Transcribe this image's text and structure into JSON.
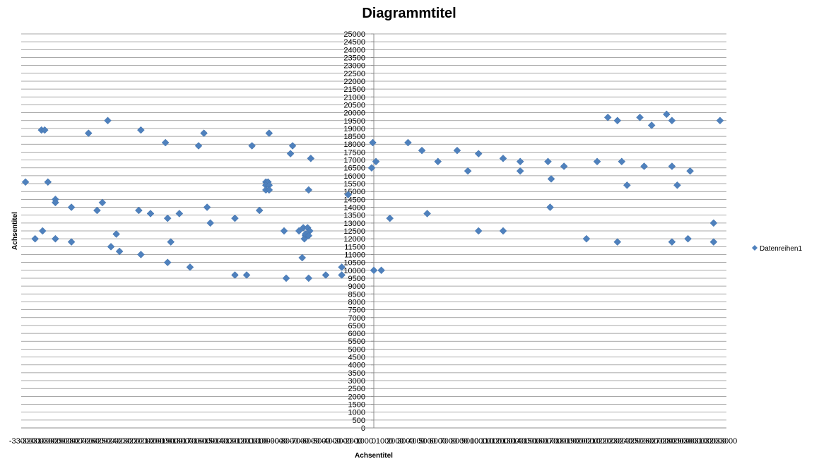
{
  "chart_data": {
    "type": "scatter",
    "title": "Diagrammtitel",
    "xlabel": "Achsentitel",
    "ylabel": "Achsentitel",
    "xlim": [
      -33000,
      33000
    ],
    "ylim": [
      0,
      25000
    ],
    "ytick_step": 500,
    "xtick_step": 1000,
    "grid": true,
    "legend_position": "right",
    "marker": "diamond",
    "color": "#4f81bd",
    "series": [
      {
        "name": "Datenreihen1",
        "points": [
          [
            -32600,
            15600
          ],
          [
            -31700,
            12000
          ],
          [
            -31000,
            12500
          ],
          [
            -31100,
            18900
          ],
          [
            -30800,
            18900
          ],
          [
            -30500,
            15600
          ],
          [
            -29800,
            14500
          ],
          [
            -29800,
            14300
          ],
          [
            -29800,
            12000
          ],
          [
            -28300,
            14000
          ],
          [
            -28300,
            11800
          ],
          [
            -26700,
            18700
          ],
          [
            -25900,
            13800
          ],
          [
            -25400,
            14300
          ],
          [
            -24900,
            19500
          ],
          [
            -24600,
            11500
          ],
          [
            -24100,
            12300
          ],
          [
            -23800,
            11200
          ],
          [
            -22000,
            13800
          ],
          [
            -21800,
            11000
          ],
          [
            -21800,
            18900
          ],
          [
            -20900,
            13600
          ],
          [
            -19500,
            18100
          ],
          [
            -19300,
            13300
          ],
          [
            -19300,
            10500
          ],
          [
            -19000,
            11800
          ],
          [
            -18200,
            13600
          ],
          [
            -17200,
            10200
          ],
          [
            -16400,
            17900
          ],
          [
            -15900,
            18700
          ],
          [
            -15600,
            14000
          ],
          [
            -15300,
            13000
          ],
          [
            -13000,
            13300
          ],
          [
            -13000,
            9700
          ],
          [
            -11900,
            9700
          ],
          [
            -11400,
            17900
          ],
          [
            -10700,
            13800
          ],
          [
            -10100,
            15600
          ],
          [
            -9900,
            15600
          ],
          [
            -10100,
            15400
          ],
          [
            -9800,
            15400
          ],
          [
            -10100,
            15100
          ],
          [
            -9800,
            15100
          ],
          [
            -9800,
            18700
          ],
          [
            -8400,
            12500
          ],
          [
            -8200,
            9500
          ],
          [
            -7800,
            17400
          ],
          [
            -7600,
            17900
          ],
          [
            -7000,
            12500
          ],
          [
            -6700,
            10800
          ],
          [
            -6600,
            12700
          ],
          [
            -6400,
            12200
          ],
          [
            -6500,
            12000
          ],
          [
            -6200,
            12700
          ],
          [
            -6000,
            12500
          ],
          [
            -6400,
            12300
          ],
          [
            -6100,
            12200
          ],
          [
            -6100,
            15100
          ],
          [
            -6100,
            9500
          ],
          [
            -5900,
            17100
          ],
          [
            -4500,
            9700
          ],
          [
            -3000,
            9700
          ],
          [
            -3000,
            10200
          ],
          [
            -2400,
            14800
          ],
          [
            -100,
            18100
          ],
          [
            -200,
            16500
          ],
          [
            0,
            10000
          ],
          [
            200,
            16900
          ],
          [
            700,
            10000
          ],
          [
            1500,
            13300
          ],
          [
            3200,
            18100
          ],
          [
            4500,
            17600
          ],
          [
            5000,
            13600
          ],
          [
            6000,
            16900
          ],
          [
            7800,
            17600
          ],
          [
            8800,
            16300
          ],
          [
            9800,
            17400
          ],
          [
            9800,
            12500
          ],
          [
            12100,
            17100
          ],
          [
            12100,
            12500
          ],
          [
            13700,
            16900
          ],
          [
            13700,
            16300
          ],
          [
            16300,
            16900
          ],
          [
            16500,
            14000
          ],
          [
            16600,
            15800
          ],
          [
            17800,
            16600
          ],
          [
            19900,
            12000
          ],
          [
            20900,
            16900
          ],
          [
            21900,
            19700
          ],
          [
            22800,
            19500
          ],
          [
            22800,
            11800
          ],
          [
            23200,
            16900
          ],
          [
            23700,
            15400
          ],
          [
            24900,
            19700
          ],
          [
            25300,
            16600
          ],
          [
            26000,
            19200
          ],
          [
            27400,
            19900
          ],
          [
            27900,
            19500
          ],
          [
            27900,
            16600
          ],
          [
            27900,
            11800
          ],
          [
            28400,
            15400
          ],
          [
            29600,
            16300
          ],
          [
            29400,
            12000
          ],
          [
            31800,
            13000
          ],
          [
            31800,
            11800
          ],
          [
            32400,
            19500
          ]
        ]
      }
    ]
  }
}
